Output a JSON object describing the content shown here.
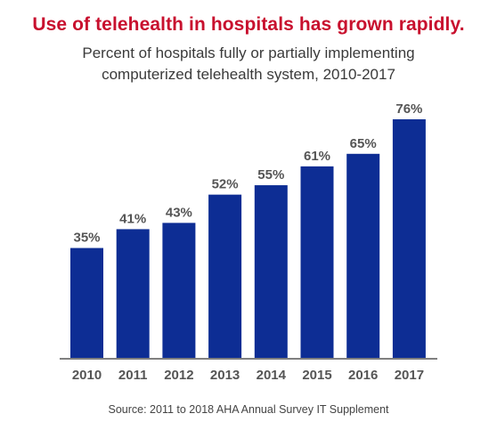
{
  "title": "Use of telehealth in hospitals has grown rapidly.",
  "subtitle_line1": "Percent of hospitals fully or partially implementing",
  "subtitle_line2": "computerized telehealth system, 2010-2017",
  "source": "Source: 2011 to 2018 AHA Annual Survey IT Supplement",
  "colors": {
    "bar": "#0d2d94",
    "title": "#c8102e",
    "axis": "#555555",
    "label": "#555555"
  },
  "chart_data": {
    "type": "bar",
    "categories": [
      "2010",
      "2011",
      "2012",
      "2013",
      "2014",
      "2015",
      "2016",
      "2017"
    ],
    "values": [
      35,
      41,
      43,
      52,
      55,
      61,
      65,
      76
    ],
    "data_labels": [
      "35%",
      "41%",
      "43%",
      "52%",
      "55%",
      "61%",
      "65%",
      "76%"
    ],
    "title": "Use of telehealth in hospitals has grown rapidly.",
    "subtitle": "Percent of hospitals fully or partially implementing computerized telehealth system, 2010-2017",
    "xlabel": "",
    "ylabel": "",
    "ylim": [
      0,
      76
    ],
    "grid": false,
    "legend": "none"
  }
}
